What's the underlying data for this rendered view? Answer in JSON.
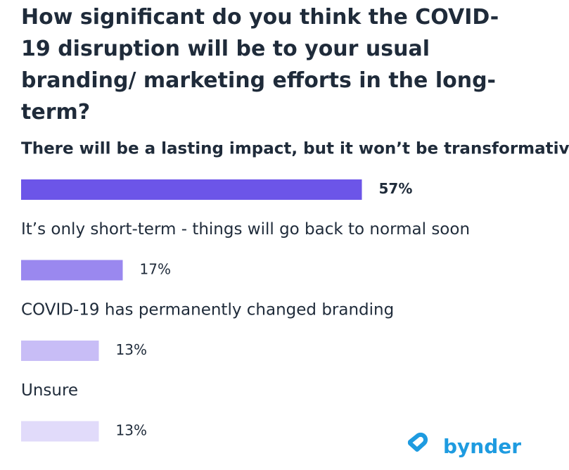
{
  "chart_data": {
    "type": "bar",
    "orientation": "horizontal",
    "title": "How significant do you think the COVID-19 disruption will be to your usual branding/ marketing efforts in the long-term?",
    "categories": [
      "There will be a lasting impact, but it won’t be transformative",
      "It’s only short-term - things will go back to normal soon",
      "COVID-19 has permanently changed branding",
      "Unsure"
    ],
    "values": [
      57,
      17,
      13,
      13
    ],
    "value_labels": [
      "57%",
      "17%",
      "13%",
      "13%"
    ],
    "colors": [
      "#6c55e8",
      "#9a88ef",
      "#c8bdf6",
      "#e1dbfa"
    ],
    "brand": "bynder"
  }
}
